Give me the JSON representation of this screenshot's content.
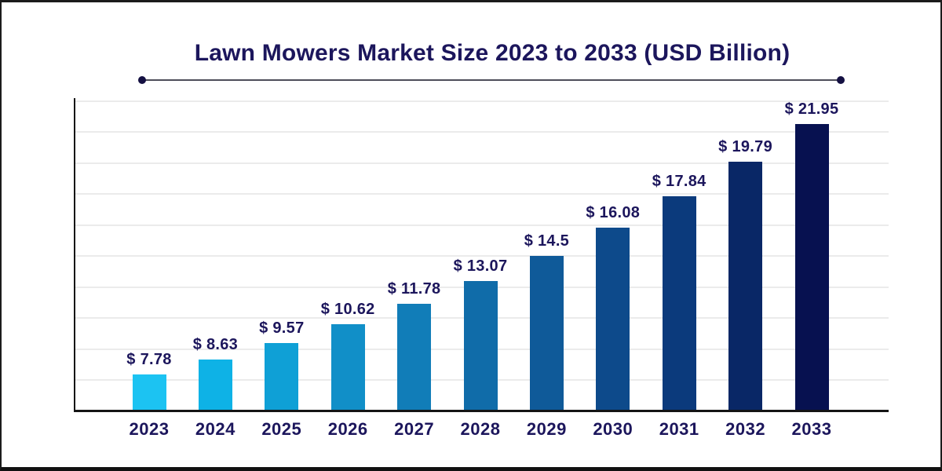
{
  "page": {
    "background": "#ffffff",
    "border_color": "#1b1b1b"
  },
  "chart_data": {
    "type": "bar",
    "title": "Lawn Mowers Market Size 2023 to 2033 (USD Billion)",
    "categories": [
      "2023",
      "2024",
      "2025",
      "2026",
      "2027",
      "2028",
      "2029",
      "2030",
      "2031",
      "2032",
      "2033"
    ],
    "values": [
      7.78,
      8.63,
      9.57,
      10.62,
      11.78,
      13.07,
      14.5,
      16.08,
      17.84,
      19.79,
      21.95
    ],
    "value_labels": [
      "$ 7.78",
      "$ 8.63",
      "$ 9.57",
      "$ 10.62",
      "$ 11.78",
      "$ 13.07",
      "$ 14.5",
      "$ 16.08",
      "$ 17.84",
      "$ 19.79",
      "$ 21.95"
    ],
    "unit": "USD Billion",
    "xlabel": "",
    "ylabel": "",
    "ylim": [
      5.8,
      23.4
    ],
    "grid": "horizontal-light",
    "gridline_count": 10,
    "legend": "none",
    "bar_colors": [
      "#1cc3f2",
      "#0eb2e6",
      "#0fa0d6",
      "#118fc8",
      "#117db8",
      "#106ca9",
      "#0f5a99",
      "#0d4a8b",
      "#0b3a7c",
      "#092766",
      "#071150"
    ],
    "label_color": "#1c165c",
    "title_color": "#1c165c",
    "axis_color": "#141414",
    "gridline_color": "#ebebeb",
    "underline_color": "#4d4d5a",
    "underline_dot_color": "#141042"
  }
}
